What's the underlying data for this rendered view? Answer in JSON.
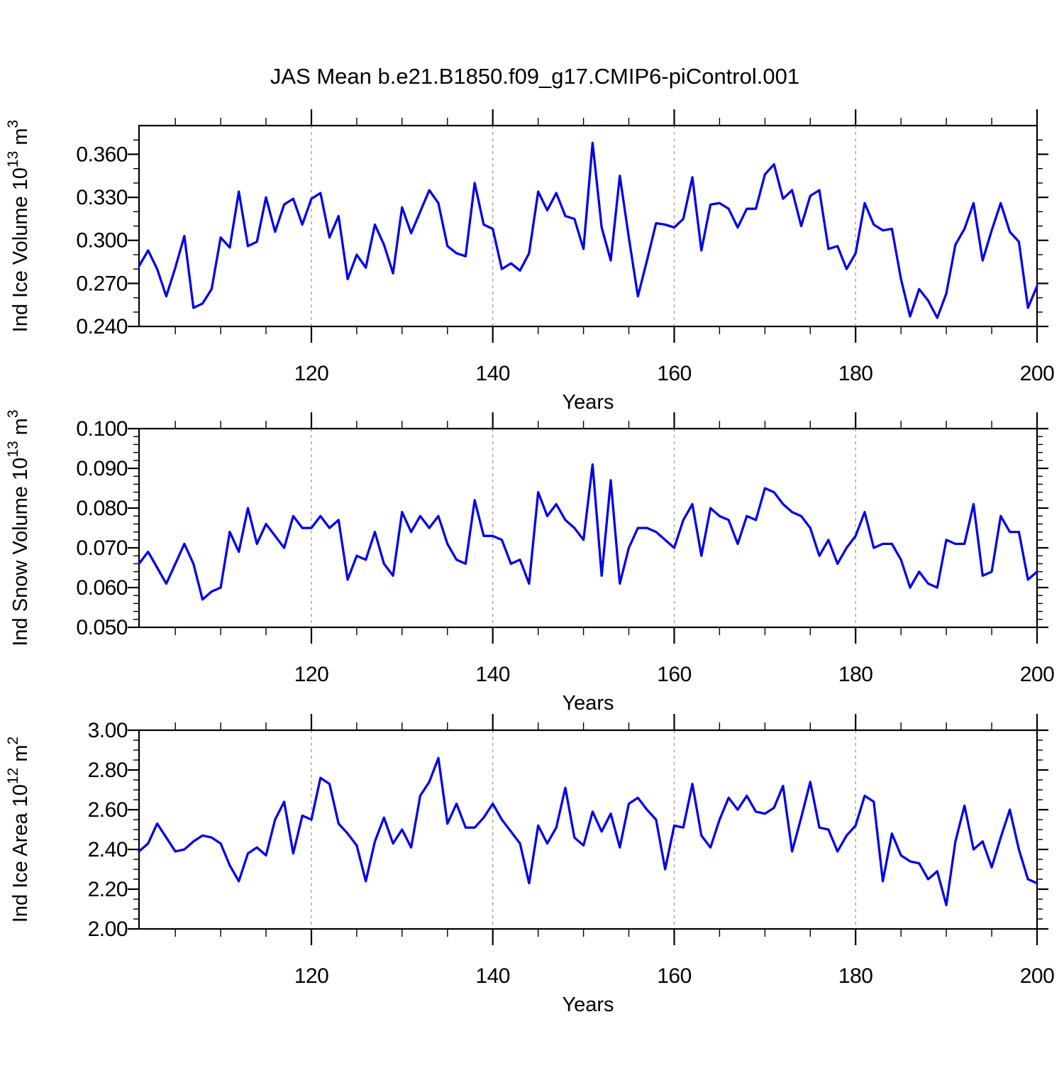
{
  "title": "JAS Mean b.e21.B1850.f09_g17.CMIP6-piControl.001",
  "line_color": "#0000EE",
  "grid_color": "#999999",
  "axis_color": "#000000",
  "x_axis": {
    "label": "Years",
    "start": 101,
    "end": 200,
    "major_ticks": [
      {
        "v": 120,
        "label": "120"
      },
      {
        "v": 140,
        "label": "140"
      },
      {
        "v": 160,
        "label": "160"
      },
      {
        "v": 180,
        "label": "180"
      },
      {
        "v": 200,
        "label": "200"
      }
    ],
    "minor_step": 5,
    "gridlines": [
      120,
      140,
      160,
      180
    ]
  },
  "chart_data": [
    {
      "type": "line",
      "id": "ice-volume",
      "ylabel_text": "Ind Ice Volume 10^13 m^3",
      "ylabel_parts": [
        {
          "t": "Ind Ice Volume 10"
        },
        {
          "t": "13",
          "sup": true
        },
        {
          "t": " m"
        },
        {
          "t": "3",
          "sup": true
        }
      ],
      "xlabel": "Years",
      "ylim": [
        0.24,
        0.38
      ],
      "yticks": [
        {
          "v": 0.36,
          "label": "0.360"
        },
        {
          "v": 0.33,
          "label": "0.330"
        },
        {
          "v": 0.3,
          "label": "0.300"
        },
        {
          "v": 0.27,
          "label": "0.270"
        },
        {
          "v": 0.24,
          "label": "0.240"
        }
      ],
      "yminor_step": 0.01,
      "x_start": 101,
      "values": [
        0.282,
        0.293,
        0.28,
        0.261,
        0.281,
        0.303,
        0.253,
        0.256,
        0.266,
        0.302,
        0.295,
        0.334,
        0.296,
        0.299,
        0.33,
        0.306,
        0.325,
        0.329,
        0.311,
        0.329,
        0.333,
        0.302,
        0.317,
        0.273,
        0.29,
        0.281,
        0.311,
        0.297,
        0.277,
        0.323,
        0.305,
        0.32,
        0.335,
        0.326,
        0.296,
        0.291,
        0.289,
        0.34,
        0.311,
        0.308,
        0.28,
        0.284,
        0.279,
        0.291,
        0.334,
        0.321,
        0.333,
        0.317,
        0.315,
        0.294,
        0.368,
        0.309,
        0.286,
        0.345,
        0.302,
        0.261,
        0.286,
        0.312,
        0.311,
        0.309,
        0.315,
        0.344,
        0.293,
        0.325,
        0.326,
        0.322,
        0.309,
        0.322,
        0.322,
        0.346,
        0.353,
        0.329,
        0.335,
        0.31,
        0.331,
        0.335,
        0.294,
        0.296,
        0.28,
        0.291,
        0.326,
        0.311,
        0.307,
        0.308,
        0.273,
        0.247,
        0.266,
        0.258,
        0.246,
        0.263,
        0.297,
        0.308,
        0.326,
        0.286,
        0.307,
        0.326,
        0.306,
        0.299,
        0.253,
        0.268
      ]
    },
    {
      "type": "line",
      "id": "snow-volume",
      "ylabel_text": "Ind Snow Volume 10^13 m^3",
      "ylabel_parts": [
        {
          "t": "Ind Snow Volume 10"
        },
        {
          "t": "13",
          "sup": true
        },
        {
          "t": " m"
        },
        {
          "t": "3",
          "sup": true
        }
      ],
      "xlabel": "Years",
      "ylim": [
        0.05,
        0.1
      ],
      "yticks": [
        {
          "v": 0.1,
          "label": "0.100"
        },
        {
          "v": 0.09,
          "label": "0.090"
        },
        {
          "v": 0.08,
          "label": "0.080"
        },
        {
          "v": 0.07,
          "label": "0.070"
        },
        {
          "v": 0.06,
          "label": "0.060"
        },
        {
          "v": 0.05,
          "label": "0.050"
        }
      ],
      "yminor_step": 0.002,
      "x_start": 101,
      "values": [
        0.066,
        0.069,
        0.065,
        0.061,
        0.066,
        0.071,
        0.066,
        0.057,
        0.059,
        0.06,
        0.074,
        0.069,
        0.08,
        0.071,
        0.076,
        0.073,
        0.07,
        0.078,
        0.075,
        0.075,
        0.078,
        0.075,
        0.077,
        0.062,
        0.068,
        0.067,
        0.074,
        0.066,
        0.063,
        0.079,
        0.074,
        0.078,
        0.075,
        0.078,
        0.071,
        0.067,
        0.066,
        0.082,
        0.073,
        0.073,
        0.072,
        0.066,
        0.067,
        0.061,
        0.084,
        0.078,
        0.081,
        0.077,
        0.075,
        0.072,
        0.091,
        0.063,
        0.087,
        0.061,
        0.07,
        0.075,
        0.075,
        0.074,
        0.072,
        0.07,
        0.077,
        0.081,
        0.068,
        0.08,
        0.078,
        0.077,
        0.071,
        0.078,
        0.077,
        0.085,
        0.084,
        0.081,
        0.079,
        0.078,
        0.075,
        0.068,
        0.072,
        0.066,
        0.07,
        0.073,
        0.079,
        0.07,
        0.071,
        0.071,
        0.067,
        0.06,
        0.064,
        0.061,
        0.06,
        0.072,
        0.071,
        0.071,
        0.081,
        0.063,
        0.064,
        0.078,
        0.074,
        0.074,
        0.062,
        0.064
      ]
    },
    {
      "type": "line",
      "id": "ice-area",
      "ylabel_text": "Ind Ice Area 10^12 m^2",
      "ylabel_parts": [
        {
          "t": "Ind Ice Area 10"
        },
        {
          "t": "12",
          "sup": true
        },
        {
          "t": " m"
        },
        {
          "t": "2",
          "sup": true
        }
      ],
      "xlabel": "Years",
      "ylim": [
        2.0,
        3.0
      ],
      "yticks": [
        {
          "v": 3.0,
          "label": "3.00"
        },
        {
          "v": 2.8,
          "label": "2.80"
        },
        {
          "v": 2.6,
          "label": "2.60"
        },
        {
          "v": 2.4,
          "label": "2.40"
        },
        {
          "v": 2.2,
          "label": "2.20"
        },
        {
          "v": 2.0,
          "label": "2.00"
        }
      ],
      "yminor_step": 0.05,
      "x_start": 101,
      "values": [
        2.39,
        2.43,
        2.53,
        2.46,
        2.39,
        2.4,
        2.44,
        2.47,
        2.46,
        2.43,
        2.32,
        2.24,
        2.38,
        2.41,
        2.37,
        2.55,
        2.64,
        2.38,
        2.57,
        2.55,
        2.76,
        2.73,
        2.53,
        2.48,
        2.42,
        2.24,
        2.44,
        2.56,
        2.43,
        2.5,
        2.41,
        2.67,
        2.74,
        2.86,
        2.53,
        2.63,
        2.51,
        2.51,
        2.56,
        2.63,
        2.55,
        2.49,
        2.43,
        2.23,
        2.52,
        2.43,
        2.51,
        2.71,
        2.46,
        2.42,
        2.59,
        2.49,
        2.58,
        2.41,
        2.63,
        2.66,
        2.6,
        2.55,
        2.3,
        2.52,
        2.51,
        2.73,
        2.47,
        2.41,
        2.55,
        2.66,
        2.6,
        2.67,
        2.59,
        2.58,
        2.61,
        2.72,
        2.39,
        2.56,
        2.74,
        2.51,
        2.5,
        2.39,
        2.47,
        2.52,
        2.67,
        2.64,
        2.24,
        2.48,
        2.37,
        2.34,
        2.33,
        2.25,
        2.29,
        2.12,
        2.44,
        2.62,
        2.4,
        2.44,
        2.31,
        2.46,
        2.6,
        2.4,
        2.25,
        2.23
      ]
    }
  ]
}
